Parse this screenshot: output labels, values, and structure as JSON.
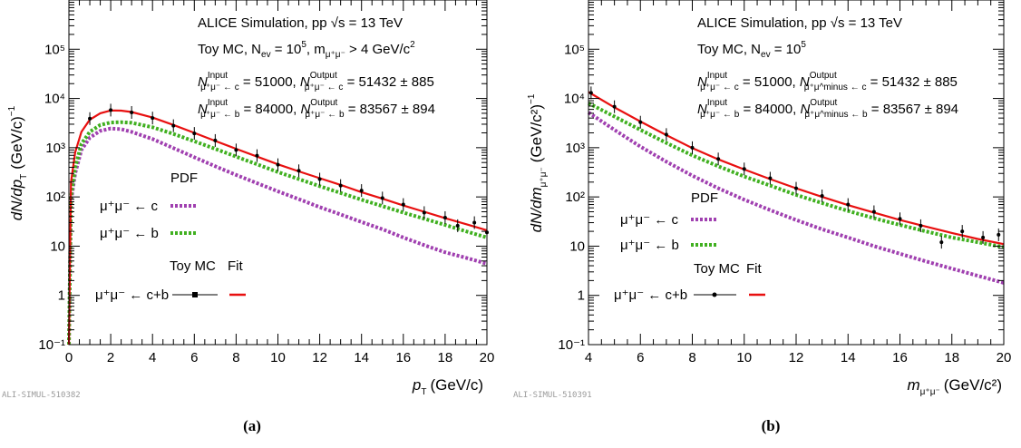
{
  "figure": {
    "panels": [
      {
        "id": "a",
        "caption": "(a)",
        "code": "ALI-SIMUL-510382",
        "header": "ALICE Simulation, pp",
        "energy": "√s = 13 TeV",
        "toy_line": "Toy MC, N",
        "toy_sub": "ev",
        "toy_eq": " = 10",
        "toy_sup": "5",
        "cut": ", m",
        "cut_sub": "μ⁺μ⁻",
        "cut_val": " > 4 GeV/c",
        "cut_sup": "2",
        "n_c_in": "N",
        "n_c_in_sub": "μ⁺μ⁻ ← c",
        "n_c_in_sup": "Input",
        "n_c_in_val": " = 51000, ",
        "n_c_out": "N",
        "n_c_out_sub": "μ⁺μ⁻ ← c",
        "n_c_out_sup": "Output",
        "n_c_out_val": " = 51432 ± 885",
        "n_b_in": "N",
        "n_b_in_sub": "μ⁺μ⁻ ← b",
        "n_b_in_sup": "Input",
        "n_b_in_val": " = 84000, ",
        "n_b_out": "N",
        "n_b_out_sub": "μ⁺μ⁻ ← b",
        "n_b_out_sup": "Output",
        "n_b_out_val": " = 83567 ± 894",
        "legend_pdf": "PDF",
        "legend_c": "μ⁺μ⁻ ← c",
        "legend_b": "μ⁺μ⁻ ← b",
        "legend_toy": "Toy MC",
        "legend_fit": "Fit",
        "legend_cb": "μ⁺μ⁻ ← c+b",
        "ylabel": "dN/dp",
        "ylabel_sub": "T",
        "ylabel_unit": "(GeV/c)",
        "ylabel_sup": "−1",
        "xlabel": "p",
        "xlabel_sub": "T",
        "xlabel_unit": "(GeV/c)"
      },
      {
        "id": "b",
        "caption": "(b)",
        "code": "ALI-SIMUL-510391",
        "header": "ALICE Simulation, pp",
        "energy": "√s = 13 TeV",
        "toy_line": "Toy MC, N",
        "toy_sub": "ev",
        "toy_eq": " = 10",
        "toy_sup": "5",
        "n_c_in": "N",
        "n_c_in_sub": "μ⁺μ⁻ ← c",
        "n_c_in_sup": "Input",
        "n_c_in_val": " = 51000, ",
        "n_c_out": "N",
        "n_c_out_sub": "μ⁺μ^minus ← c",
        "n_c_out_sup": "Output",
        "n_c_out_val": " = 51432 ± 885",
        "n_b_in": "N",
        "n_b_in_sub": "μ⁺μ⁻ ← b",
        "n_b_in_sup": "Input",
        "n_b_in_val": " = 84000, ",
        "n_b_out": "N",
        "n_b_out_sub": "μ⁺μ^minus ← b",
        "n_b_out_sup": "Output",
        "n_b_out_val": " = 83567 ± 894",
        "legend_pdf": "PDF",
        "legend_c": "μ⁺μ⁻ ← c",
        "legend_b": "μ⁺μ⁻ ← b",
        "legend_toy": "Toy MC",
        "legend_fit": "Fit",
        "legend_cb": "μ⁺μ⁻ ← c+b",
        "ylabel": "dN/dm",
        "ylabel_sub": "μ⁺μ⁻",
        "ylabel_unit": "(GeV/c²)",
        "ylabel_sup": "−1",
        "xlabel": "m",
        "xlabel_sub": "μ⁺μ⁻",
        "xlabel_unit": "(GeV/c²)"
      }
    ]
  },
  "chart_data": [
    {
      "type": "line",
      "panel": "a",
      "xlabel": "p_T (GeV/c)",
      "ylabel": "dN/dp_T (GeV/c)^-1",
      "xlim": [
        0,
        20
      ],
      "ylim": [
        0.1,
        1000000
      ],
      "log_y": true,
      "x_ticks": [
        0,
        2,
        4,
        6,
        8,
        10,
        12,
        14,
        16,
        18,
        20
      ],
      "x_tick_labels": [
        "0",
        "2",
        "4",
        "6",
        "8",
        "10",
        "12",
        "14",
        "16",
        "18",
        "20"
      ],
      "y_ticks": [
        0.1,
        1,
        10,
        100,
        1000,
        10000,
        100000
      ],
      "y_tick_labels": [
        "10⁻¹",
        "1",
        "10",
        "10²",
        "10³",
        "10⁴",
        "10⁵"
      ],
      "colors": {
        "c": "#a040b0",
        "b": "#40b020",
        "fit": "#e81010",
        "toy": "#000000"
      },
      "series": [
        {
          "name": "μ⁺μ⁻ ← c",
          "style": "dotted",
          "points": [
            [
              0,
              0.1
            ],
            [
              0.1,
              80
            ],
            [
              0.3,
              300
            ],
            [
              0.6,
              900
            ],
            [
              1,
              1600
            ],
            [
              1.5,
              2200
            ],
            [
              2,
              2450
            ],
            [
              2.5,
              2380
            ],
            [
              3,
              2100
            ],
            [
              4,
              1500
            ],
            [
              5,
              980
            ],
            [
              6,
              640
            ],
            [
              7,
              420
            ],
            [
              8,
              280
            ],
            [
              9,
              190
            ],
            [
              10,
              130
            ],
            [
              11,
              90
            ],
            [
              12,
              62
            ],
            [
              13,
              44
            ],
            [
              14,
              31
            ],
            [
              15,
              22
            ],
            [
              16,
              15
            ],
            [
              17,
              10.5
            ],
            [
              18,
              7.5
            ],
            [
              19,
              5.8
            ],
            [
              20,
              4.4
            ]
          ]
        },
        {
          "name": "μ⁺μ⁻ ← b",
          "style": "dotted",
          "points": [
            [
              0,
              0.1
            ],
            [
              0.1,
              100
            ],
            [
              0.3,
              400
            ],
            [
              0.6,
              1200
            ],
            [
              1,
              2100
            ],
            [
              1.5,
              2900
            ],
            [
              2,
              3250
            ],
            [
              2.5,
              3300
            ],
            [
              3,
              3200
            ],
            [
              4,
              2600
            ],
            [
              5,
              1900
            ],
            [
              6,
              1350
            ],
            [
              7,
              950
            ],
            [
              8,
              660
            ],
            [
              9,
              460
            ],
            [
              10,
              320
            ],
            [
              11,
              230
            ],
            [
              12,
              165
            ],
            [
              13,
              120
            ],
            [
              14,
              88
            ],
            [
              15,
              65
            ],
            [
              16,
              48
            ],
            [
              17,
              36
            ],
            [
              18,
              27
            ],
            [
              19,
              20
            ],
            [
              20,
              15
            ]
          ]
        },
        {
          "name": "Fit",
          "style": "solid",
          "points": [
            [
              0,
              0.1
            ],
            [
              0.1,
              200
            ],
            [
              0.3,
              800
            ],
            [
              0.6,
              2100
            ],
            [
              1,
              3700
            ],
            [
              1.5,
              5000
            ],
            [
              2,
              5700
            ],
            [
              2.5,
              5650
            ],
            [
              3,
              5300
            ],
            [
              4,
              4100
            ],
            [
              5,
              2900
            ],
            [
              6,
              2000
            ],
            [
              7,
              1370
            ],
            [
              8,
              950
            ],
            [
              9,
              660
            ],
            [
              10,
              460
            ],
            [
              11,
              330
            ],
            [
              12,
              240
            ],
            [
              13,
              175
            ],
            [
              14,
              125
            ],
            [
              15,
              92
            ],
            [
              16,
              67
            ],
            [
              17,
              50
            ],
            [
              18,
              37
            ],
            [
              19,
              28
            ],
            [
              20,
              21
            ]
          ]
        },
        {
          "name": "Toy MC",
          "style": "points",
          "points": [
            [
              1,
              3900
            ],
            [
              2,
              5800
            ],
            [
              3,
              5200
            ],
            [
              4,
              4000
            ],
            [
              5,
              2800
            ],
            [
              6,
              1950
            ],
            [
              7,
              1400
            ],
            [
              8,
              900
            ],
            [
              9,
              690
            ],
            [
              10,
              450
            ],
            [
              11,
              340
            ],
            [
              12,
              230
            ],
            [
              13,
              170
            ],
            [
              14,
              135
            ],
            [
              15,
              95
            ],
            [
              16,
              70
            ],
            [
              17,
              48
            ],
            [
              18,
              38
            ],
            [
              18.6,
              26
            ],
            [
              19.4,
              30
            ],
            [
              20,
              19
            ]
          ]
        }
      ]
    },
    {
      "type": "line",
      "panel": "b",
      "xlabel": "m_μ⁺μ⁻ (GeV/c²)",
      "ylabel": "dN/dm_μ⁺μ⁻ (GeV/c²)^-1",
      "xlim": [
        4,
        20
      ],
      "ylim": [
        0.1,
        1000000
      ],
      "log_y": true,
      "x_ticks": [
        4,
        6,
        8,
        10,
        12,
        14,
        16,
        18,
        20
      ],
      "x_tick_labels": [
        "4",
        "6",
        "8",
        "10",
        "12",
        "14",
        "16",
        "18",
        "20"
      ],
      "y_ticks": [
        0.1,
        1,
        10,
        100,
        1000,
        10000,
        100000
      ],
      "y_tick_labels": [
        "10⁻¹",
        "1",
        "10",
        "10²",
        "10³",
        "10⁴",
        "10⁵"
      ],
      "colors": {
        "c": "#a040b0",
        "b": "#40b020",
        "fit": "#e81010",
        "toy": "#000000"
      },
      "series": [
        {
          "name": "μ⁺μ⁻ ← c",
          "style": "dotted",
          "points": [
            [
              4,
              5200
            ],
            [
              5,
              2300
            ],
            [
              6,
              1050
            ],
            [
              7,
              520
            ],
            [
              8,
              270
            ],
            [
              9,
              150
            ],
            [
              10,
              88
            ],
            [
              11,
              54
            ],
            [
              12,
              34
            ],
            [
              13,
              22
            ],
            [
              14,
              15
            ],
            [
              15,
              10
            ],
            [
              16,
              7
            ],
            [
              17,
              4.9
            ],
            [
              18,
              3.5
            ],
            [
              19,
              2.5
            ],
            [
              20,
              1.8
            ]
          ]
        },
        {
          "name": "μ⁺μ⁻ ← b",
          "style": "dotted",
          "points": [
            [
              4,
              8000
            ],
            [
              5,
              4300
            ],
            [
              6,
              2300
            ],
            [
              7,
              1250
            ],
            [
              8,
              700
            ],
            [
              9,
              420
            ],
            [
              10,
              260
            ],
            [
              11,
              170
            ],
            [
              12,
              110
            ],
            [
              13,
              75
            ],
            [
              14,
              52
            ],
            [
              15,
              37
            ],
            [
              16,
              27
            ],
            [
              17,
              20
            ],
            [
              18,
              15
            ],
            [
              19,
              12
            ],
            [
              20,
              9.5
            ]
          ]
        },
        {
          "name": "Fit",
          "style": "solid",
          "points": [
            [
              4,
              13500
            ],
            [
              5,
              6600
            ],
            [
              6,
              3400
            ],
            [
              7,
              1800
            ],
            [
              8,
              980
            ],
            [
              9,
              580
            ],
            [
              10,
              360
            ],
            [
              11,
              230
            ],
            [
              12,
              150
            ],
            [
              13,
              100
            ],
            [
              14,
              68
            ],
            [
              15,
              48
            ],
            [
              16,
              34
            ],
            [
              17,
              25
            ],
            [
              18,
              18.5
            ],
            [
              19,
              14
            ],
            [
              20,
              11
            ]
          ]
        },
        {
          "name": "Toy MC",
          "style": "points",
          "points": [
            [
              4.1,
              13000
            ],
            [
              5,
              6800
            ],
            [
              6,
              3300
            ],
            [
              7,
              1850
            ],
            [
              8,
              1000
            ],
            [
              9,
              590
            ],
            [
              10,
              370
            ],
            [
              11,
              240
            ],
            [
              12,
              150
            ],
            [
              13,
              105
            ],
            [
              14,
              70
            ],
            [
              15,
              50
            ],
            [
              16,
              36
            ],
            [
              16.8,
              26
            ],
            [
              17.6,
              12
            ],
            [
              18.4,
              20
            ],
            [
              19.2,
              15
            ],
            [
              19.8,
              17
            ]
          ]
        }
      ]
    }
  ]
}
